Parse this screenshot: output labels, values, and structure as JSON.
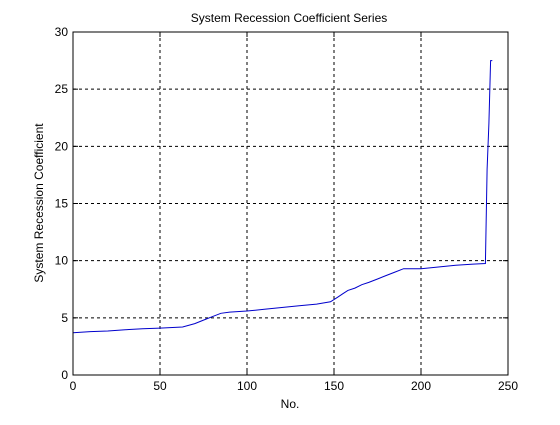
{
  "chart_data": {
    "type": "line",
    "title": "System Recession Coefficient Series",
    "xlabel": "No.",
    "ylabel": "System Recession Coefficient",
    "xlim": [
      0,
      250
    ],
    "ylim": [
      0,
      30
    ],
    "xticks": [
      0,
      50,
      100,
      150,
      200,
      250
    ],
    "yticks": [
      0,
      5,
      10,
      15,
      20,
      25,
      30
    ],
    "grid": true,
    "grid_style": "dashed",
    "line_color": "#0000cc",
    "series": [
      {
        "x": [
          0,
          10,
          20,
          30,
          40,
          50,
          63,
          70,
          75,
          80,
          85,
          90,
          100,
          110,
          120,
          130,
          140,
          148,
          152,
          155,
          158,
          162,
          166,
          170,
          175,
          180,
          185,
          190,
          195,
          200,
          210,
          220,
          230,
          237,
          238,
          239,
          240,
          241
        ],
        "y": [
          3.7,
          3.8,
          3.85,
          3.95,
          4.05,
          4.1,
          4.2,
          4.5,
          4.8,
          5.1,
          5.4,
          5.5,
          5.6,
          5.75,
          5.9,
          6.05,
          6.2,
          6.4,
          6.8,
          7.1,
          7.4,
          7.6,
          7.9,
          8.1,
          8.4,
          8.7,
          9.0,
          9.3,
          9.3,
          9.3,
          9.45,
          9.6,
          9.7,
          9.75,
          18.0,
          22.0,
          27.5,
          27.5
        ]
      }
    ]
  }
}
